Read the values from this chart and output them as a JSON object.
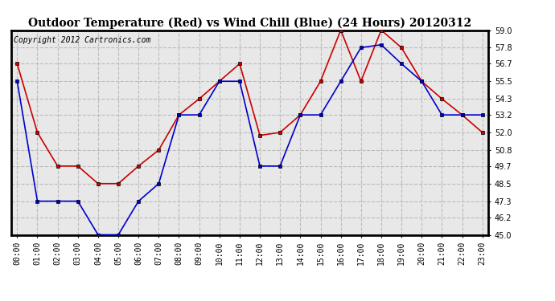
{
  "title": "Outdoor Temperature (Red) vs Wind Chill (Blue) (24 Hours) 20120312",
  "copyright_text": "Copyright 2012 Cartronics.com",
  "hours": [
    "00:00",
    "01:00",
    "02:00",
    "03:00",
    "04:00",
    "05:00",
    "06:00",
    "07:00",
    "08:00",
    "09:00",
    "10:00",
    "11:00",
    "12:00",
    "13:00",
    "14:00",
    "15:00",
    "16:00",
    "17:00",
    "18:00",
    "19:00",
    "20:00",
    "21:00",
    "22:00",
    "23:00"
  ],
  "red_temp": [
    56.7,
    52.0,
    49.7,
    49.7,
    48.5,
    48.5,
    49.7,
    50.8,
    53.2,
    54.3,
    55.5,
    56.7,
    51.8,
    52.0,
    53.2,
    55.5,
    59.0,
    55.5,
    59.0,
    57.8,
    55.5,
    54.3,
    53.2,
    52.0
  ],
  "blue_wc": [
    55.5,
    47.3,
    47.3,
    47.3,
    45.0,
    45.0,
    47.3,
    48.5,
    53.2,
    53.2,
    55.5,
    55.5,
    49.7,
    49.7,
    53.2,
    53.2,
    55.5,
    57.8,
    58.0,
    56.7,
    55.5,
    53.2,
    53.2,
    53.2
  ],
  "red_color": "#cc0000",
  "blue_color": "#0000cc",
  "bg_color": "#ffffff",
  "plot_bg_color": "#e8e8e8",
  "grid_color": "#bbbbbb",
  "ylim_min": 45.0,
  "ylim_max": 59.0,
  "yticks": [
    45.0,
    46.2,
    47.3,
    48.5,
    49.7,
    50.8,
    52.0,
    53.2,
    54.3,
    55.5,
    56.7,
    57.8,
    59.0
  ],
  "title_fontsize": 10,
  "tick_fontsize": 7,
  "copyright_fontsize": 7
}
